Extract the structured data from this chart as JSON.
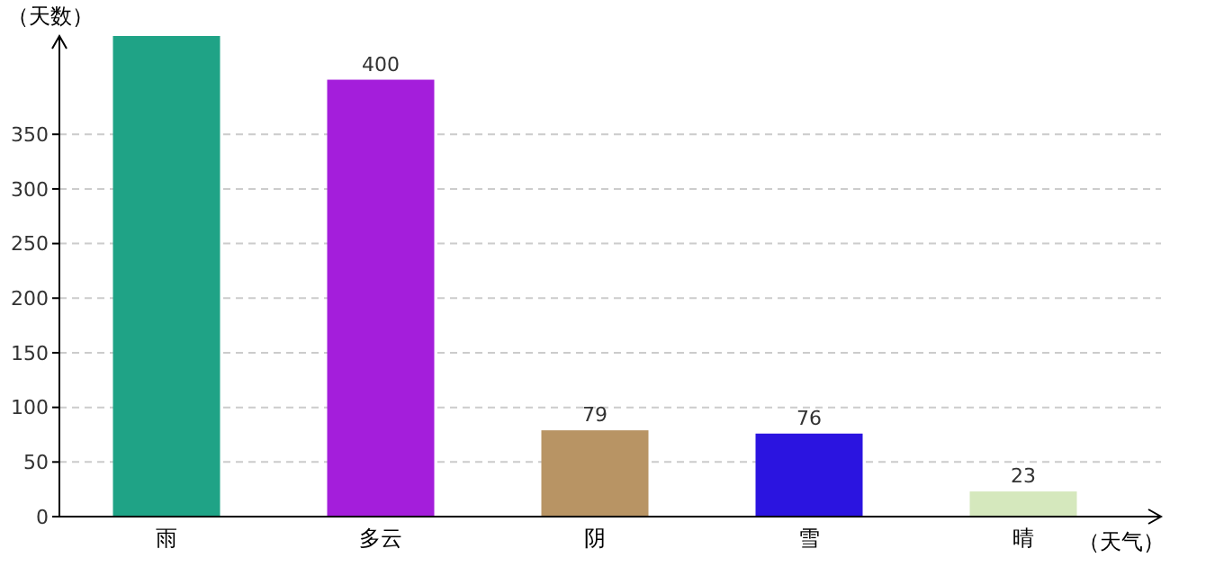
{
  "chart_data": {
    "type": "bar",
    "xlabel": "（天气）",
    "ylabel": "（天数）",
    "categories": [
      "雨",
      "多云",
      "阴",
      "雪",
      "晴"
    ],
    "values": [
      440,
      400,
      79,
      76,
      23
    ],
    "colors": [
      "#1fa386",
      "#a41edb",
      "#b89464",
      "#2b14e0",
      "#d5e8bd"
    ],
    "value_labels": [
      null,
      "400",
      "79",
      "76",
      "23"
    ],
    "ylim": [
      0,
      440
    ],
    "yticks": [
      0,
      50,
      100,
      150,
      200,
      250,
      300,
      350
    ],
    "grid": "y"
  }
}
